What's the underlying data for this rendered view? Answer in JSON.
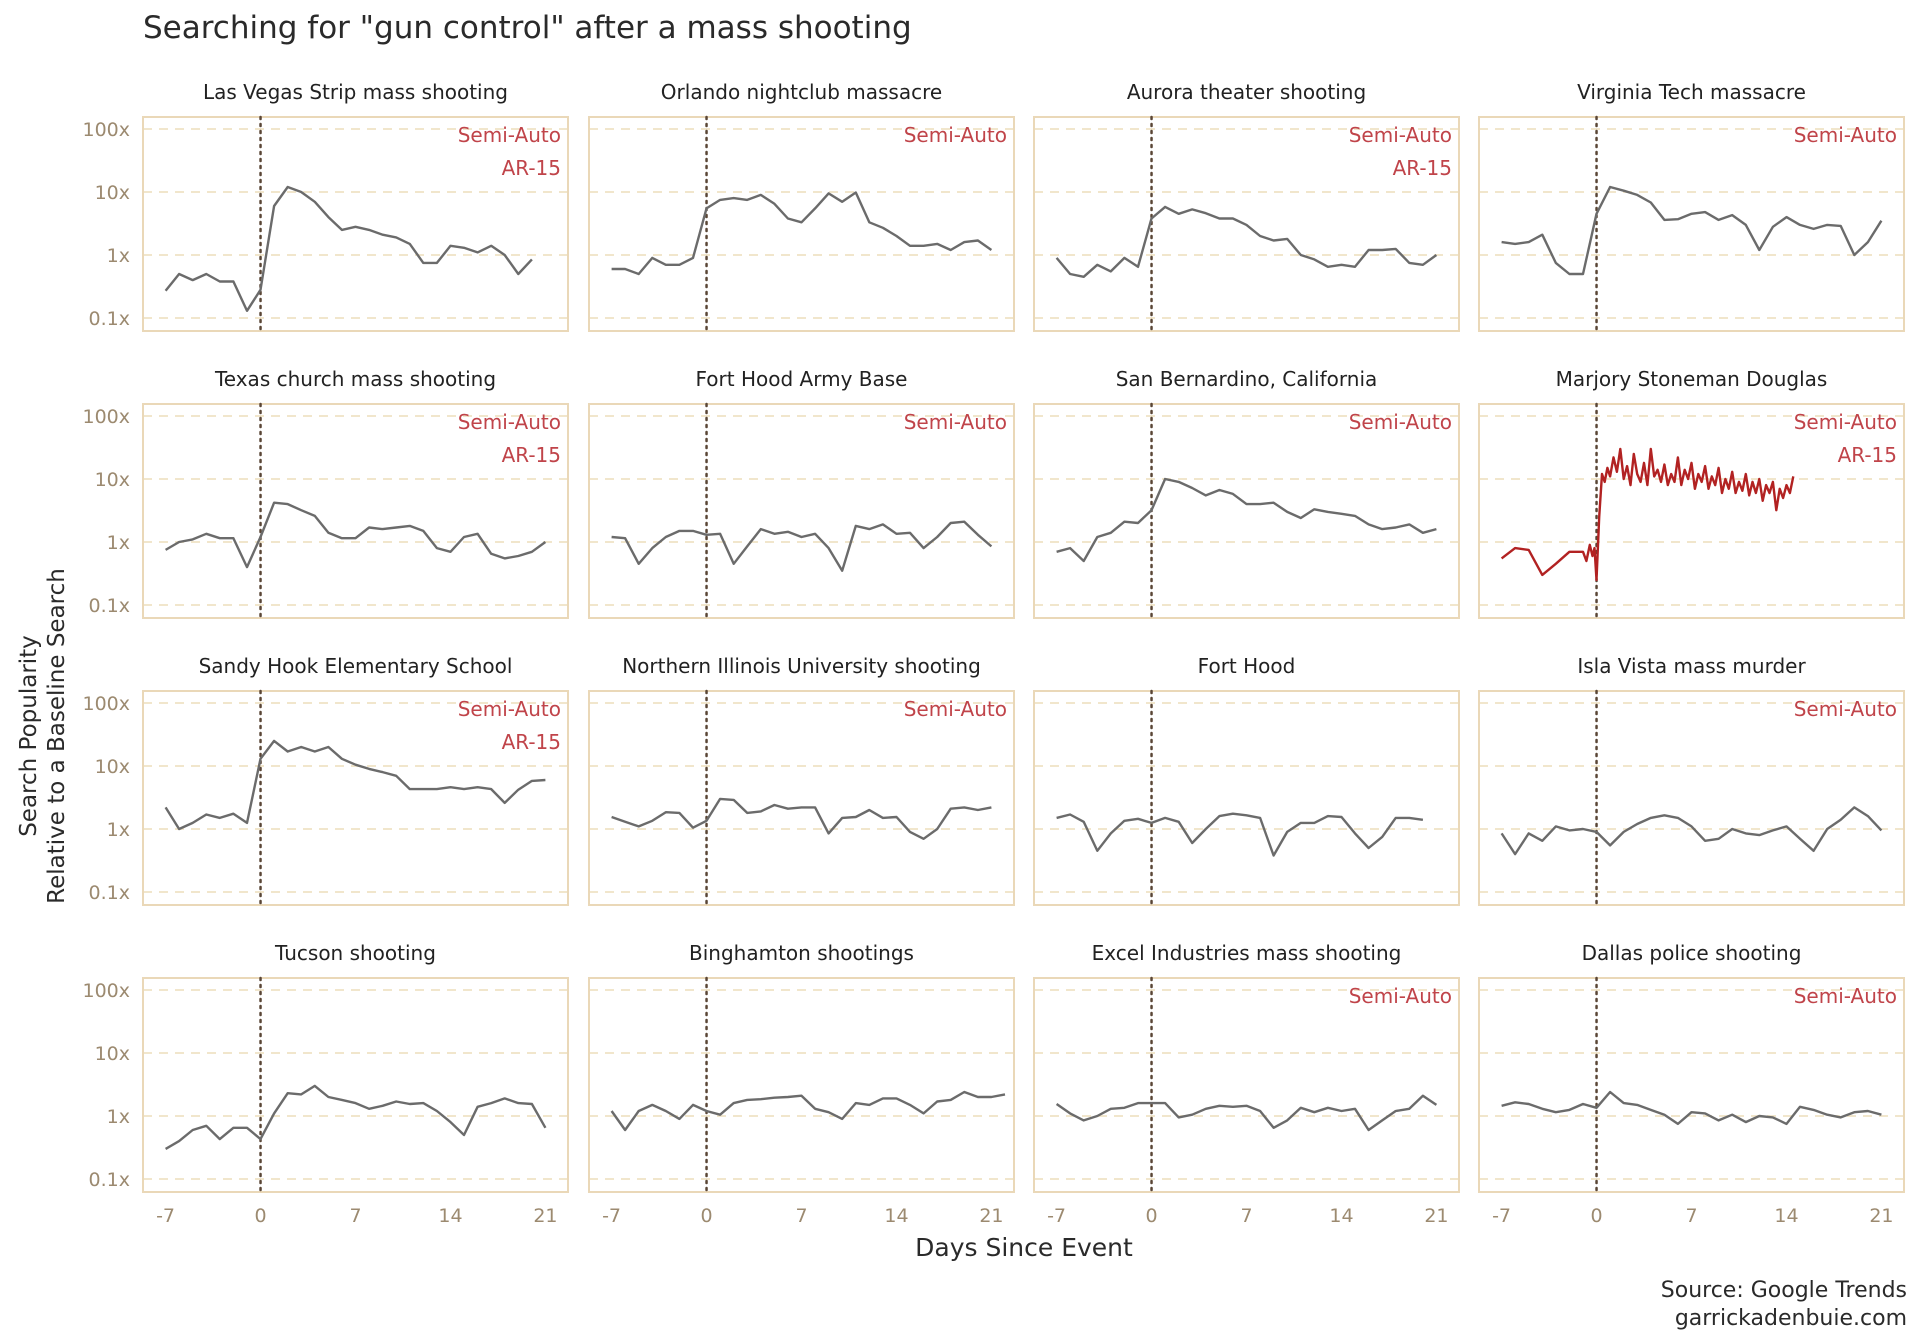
{
  "chart_data": {
    "type": "line",
    "title": "Searching for \"gun control\" after a mass shooting",
    "xlabel": "Days Since Event",
    "ylabel_lines": [
      "Search Popularity",
      "Relative to a Baseline Search"
    ],
    "x_ticks": [
      -7,
      0,
      7,
      14,
      21
    ],
    "x_tick_labels": [
      "-7",
      "0",
      "7",
      "14",
      "21"
    ],
    "xlim": [
      -8,
      22
    ],
    "y_scale": "log",
    "y_ticks": [
      0.1,
      1,
      10,
      100
    ],
    "y_tick_labels": [
      "0.1x",
      "1x",
      "10x",
      "100x"
    ],
    "ylim": [
      0.1,
      120
    ],
    "event_day": 0,
    "caption_lines": [
      "Source: Google Trends",
      "garrickadenbuie.com"
    ],
    "colors": {
      "line": "#6b6b6b",
      "highlight": "#b22222",
      "tag": "#c0444a",
      "panel_border": "#ead8b8",
      "grid": "#f1e6cc",
      "event_line": "#5a4636",
      "tick_label": "#9c8a70",
      "text": "#222222"
    },
    "panels": [
      {
        "title": "Las Vegas Strip mass shooting",
        "tags": [
          "Semi-Auto",
          "AR-15"
        ],
        "start_day": -7,
        "values": [
          0.27,
          0.5,
          0.4,
          0.5,
          0.38,
          0.38,
          0.13,
          0.28,
          6,
          12,
          10,
          7,
          4,
          2.5,
          2.8,
          2.5,
          2.1,
          1.9,
          1.5,
          0.75,
          0.75,
          1.4,
          1.3,
          1.1,
          1.4,
          1.0,
          0.5,
          0.85
        ]
      },
      {
        "title": "Orlando nightclub massacre",
        "tags": [
          "Semi-Auto"
        ],
        "start_day": -7,
        "values": [
          0.6,
          0.6,
          0.5,
          0.9,
          0.7,
          0.7,
          0.9,
          5.5,
          7.5,
          8,
          7.5,
          9,
          6.5,
          3.8,
          3.3,
          5.5,
          9.5,
          7,
          9.8,
          3.3,
          2.7,
          2.0,
          1.4,
          1.4,
          1.5,
          1.2,
          1.6,
          1.7,
          1.2
        ]
      },
      {
        "title": "Aurora theater shooting",
        "tags": [
          "Semi-Auto",
          "AR-15"
        ],
        "start_day": -7,
        "values": [
          0.9,
          0.5,
          0.45,
          0.7,
          0.55,
          0.9,
          0.65,
          3.8,
          5.8,
          4.5,
          5.3,
          4.6,
          3.8,
          3.8,
          3.0,
          2.0,
          1.7,
          1.8,
          1.0,
          0.85,
          0.65,
          0.7,
          0.65,
          1.2,
          1.2,
          1.25,
          0.75,
          0.7,
          1.0
        ]
      },
      {
        "title": "Virginia Tech massacre",
        "tags": [
          "Semi-Auto"
        ],
        "start_day": -7,
        "values": [
          1.6,
          1.5,
          1.6,
          2.1,
          0.75,
          0.5,
          0.5,
          4.5,
          12,
          10.5,
          9,
          6.8,
          3.6,
          3.7,
          4.5,
          4.8,
          3.6,
          4.3,
          3.0,
          1.2,
          2.8,
          4.0,
          3.0,
          2.6,
          3.0,
          2.9,
          1.0,
          1.6,
          3.5
        ]
      },
      {
        "title": "Texas church mass shooting",
        "tags": [
          "Semi-Auto",
          "AR-15"
        ],
        "start_day": -7,
        "values": [
          0.75,
          1.0,
          1.1,
          1.35,
          1.15,
          1.15,
          0.4,
          1.2,
          4.2,
          4.0,
          3.2,
          2.6,
          1.4,
          1.15,
          1.15,
          1.7,
          1.6,
          1.7,
          1.8,
          1.5,
          0.8,
          0.7,
          1.2,
          1.35,
          0.65,
          0.55,
          0.6,
          0.7,
          1.0
        ]
      },
      {
        "title": "Fort Hood Army Base",
        "tags": [
          "Semi-Auto"
        ],
        "start_day": -7,
        "values": [
          1.2,
          1.15,
          0.45,
          0.8,
          1.2,
          1.5,
          1.5,
          1.3,
          1.35,
          0.45,
          0.85,
          1.6,
          1.35,
          1.45,
          1.2,
          1.35,
          0.8,
          0.35,
          1.8,
          1.6,
          1.9,
          1.35,
          1.4,
          0.8,
          1.2,
          2.0,
          2.1,
          1.3,
          0.85
        ]
      },
      {
        "title": "San Bernardino, California",
        "tags": [
          "Semi-Auto"
        ],
        "start_day": -7,
        "values": [
          0.7,
          0.8,
          0.5,
          1.2,
          1.4,
          2.1,
          2.0,
          3.2,
          10,
          9,
          7.2,
          5.5,
          6.7,
          5.8,
          4.0,
          4.0,
          4.2,
          3.0,
          2.4,
          3.3,
          3.0,
          2.8,
          2.6,
          1.9,
          1.6,
          1.7,
          1.9,
          1.4,
          1.6
        ]
      },
      {
        "title": "Marjory Stoneman Douglas",
        "tags": [
          "Semi-Auto",
          "AR-15"
        ],
        "start_day": -7,
        "highlight": true,
        "x": [
          -7,
          -6,
          -5,
          -4,
          -3,
          -2,
          -1,
          -0.75,
          -0.5,
          -0.3,
          -0.15,
          0,
          0.2,
          0.4,
          0.6,
          0.8,
          1.0,
          1.25,
          1.5,
          1.75,
          2.0,
          2.25,
          2.5,
          2.75,
          3.0,
          3.25,
          3.5,
          3.75,
          4.0,
          4.25,
          4.5,
          4.75,
          5.0,
          5.25,
          5.5,
          5.75,
          6.0,
          6.25,
          6.5,
          6.75,
          7.0,
          7.25,
          7.5,
          7.75,
          8.0,
          8.25,
          8.5,
          8.75,
          9.0,
          9.25,
          9.5,
          9.75,
          10.0,
          10.25,
          10.5,
          10.75,
          11.0,
          11.25,
          11.5,
          11.75,
          12.0,
          12.25,
          12.5,
          12.75,
          13.0,
          13.25,
          13.5,
          13.75,
          14.0,
          14.25,
          14.5
        ],
        "values": [
          0.55,
          0.8,
          0.75,
          0.3,
          0.45,
          0.7,
          0.7,
          0.5,
          0.9,
          0.6,
          0.8,
          0.25,
          2.5,
          12,
          9,
          15,
          11,
          22,
          13,
          30,
          10,
          16,
          8,
          25,
          12,
          9,
          18,
          8,
          30,
          11,
          14,
          9,
          17,
          8,
          12,
          9,
          22,
          8,
          14,
          10,
          18,
          7,
          12,
          9,
          16,
          7,
          11,
          8,
          15,
          6,
          10,
          7,
          13,
          6,
          9,
          6.5,
          12,
          5.5,
          9,
          6,
          10,
          4.5,
          8,
          6,
          9,
          3.2,
          7,
          5,
          8,
          6,
          11
        ]
      },
      {
        "title": "Sandy Hook Elementary School",
        "tags": [
          "Semi-Auto",
          "AR-15"
        ],
        "start_day": -7,
        "values": [
          2.2,
          1.0,
          1.25,
          1.7,
          1.5,
          1.75,
          1.25,
          13,
          25,
          17,
          20,
          17,
          20,
          13,
          10.5,
          9,
          8,
          7,
          4.3,
          4.3,
          4.3,
          4.6,
          4.3,
          4.6,
          4.3,
          2.6,
          4.2,
          5.8,
          6.0
        ]
      },
      {
        "title": "Northern Illinois University shooting",
        "tags": [
          "Semi-Auto"
        ],
        "start_day": -7,
        "values": [
          1.55,
          1.3,
          1.1,
          1.35,
          1.85,
          1.8,
          1.05,
          1.35,
          3.0,
          2.9,
          1.8,
          1.9,
          2.4,
          2.1,
          2.2,
          2.2,
          0.85,
          1.5,
          1.55,
          2.0,
          1.5,
          1.55,
          0.9,
          0.7,
          1.0,
          2.1,
          2.2,
          2.0,
          2.2
        ]
      },
      {
        "title": "Fort Hood",
        "tags": [],
        "start_day": -7,
        "values": [
          1.5,
          1.7,
          1.3,
          0.45,
          0.85,
          1.35,
          1.45,
          1.25,
          1.5,
          1.3,
          0.6,
          1.0,
          1.6,
          1.75,
          1.65,
          1.5,
          0.38,
          0.9,
          1.25,
          1.25,
          1.6,
          1.55,
          0.85,
          0.5,
          0.75,
          1.5,
          1.5,
          1.4
        ]
      },
      {
        "title": "Isla Vista mass murder",
        "tags": [
          "Semi-Auto"
        ],
        "start_day": -7,
        "values": [
          0.85,
          0.4,
          0.85,
          0.65,
          1.1,
          0.95,
          1.0,
          0.9,
          0.55,
          0.9,
          1.2,
          1.5,
          1.65,
          1.5,
          1.1,
          0.65,
          0.7,
          1.0,
          0.85,
          0.8,
          0.95,
          1.1,
          0.7,
          0.45,
          1.0,
          1.4,
          2.2,
          1.6,
          0.95
        ]
      },
      {
        "title": "Tucson shooting",
        "tags": [],
        "start_day": -7,
        "values": [
          0.3,
          0.4,
          0.6,
          0.7,
          0.43,
          0.65,
          0.65,
          0.43,
          1.1,
          2.3,
          2.2,
          3.0,
          2.0,
          1.8,
          1.6,
          1.3,
          1.45,
          1.7,
          1.55,
          1.6,
          1.2,
          0.8,
          0.5,
          1.4,
          1.6,
          1.9,
          1.6,
          1.55,
          0.65
        ]
      },
      {
        "title": "Binghamton shootings",
        "tags": [],
        "start_day": -7,
        "values": [
          1.2,
          0.6,
          1.2,
          1.5,
          1.2,
          0.9,
          1.5,
          1.2,
          1.05,
          1.6,
          1.8,
          1.85,
          1.95,
          2.0,
          2.1,
          1.3,
          1.15,
          0.9,
          1.6,
          1.5,
          1.9,
          1.9,
          1.5,
          1.1,
          1.7,
          1.8,
          2.4,
          2.0,
          2.0,
          2.2
        ]
      },
      {
        "title": "Excel Industries mass shooting",
        "tags": [
          "Semi-Auto"
        ],
        "start_day": -7,
        "values": [
          1.55,
          1.1,
          0.85,
          1.0,
          1.3,
          1.35,
          1.6,
          1.6,
          1.6,
          0.95,
          1.05,
          1.3,
          1.45,
          1.4,
          1.45,
          1.2,
          0.65,
          0.85,
          1.35,
          1.15,
          1.35,
          1.2,
          1.3,
          0.6,
          0.85,
          1.2,
          1.3,
          2.1,
          1.5
        ]
      },
      {
        "title": "Dallas police shooting",
        "tags": [
          "Semi-Auto"
        ],
        "start_day": -7,
        "values": [
          1.45,
          1.65,
          1.55,
          1.3,
          1.15,
          1.25,
          1.55,
          1.35,
          2.4,
          1.6,
          1.5,
          1.25,
          1.05,
          0.75,
          1.15,
          1.1,
          0.85,
          1.05,
          0.8,
          1.0,
          0.95,
          0.75,
          1.4,
          1.25,
          1.05,
          0.95,
          1.15,
          1.2,
          1.05
        ]
      }
    ]
  }
}
